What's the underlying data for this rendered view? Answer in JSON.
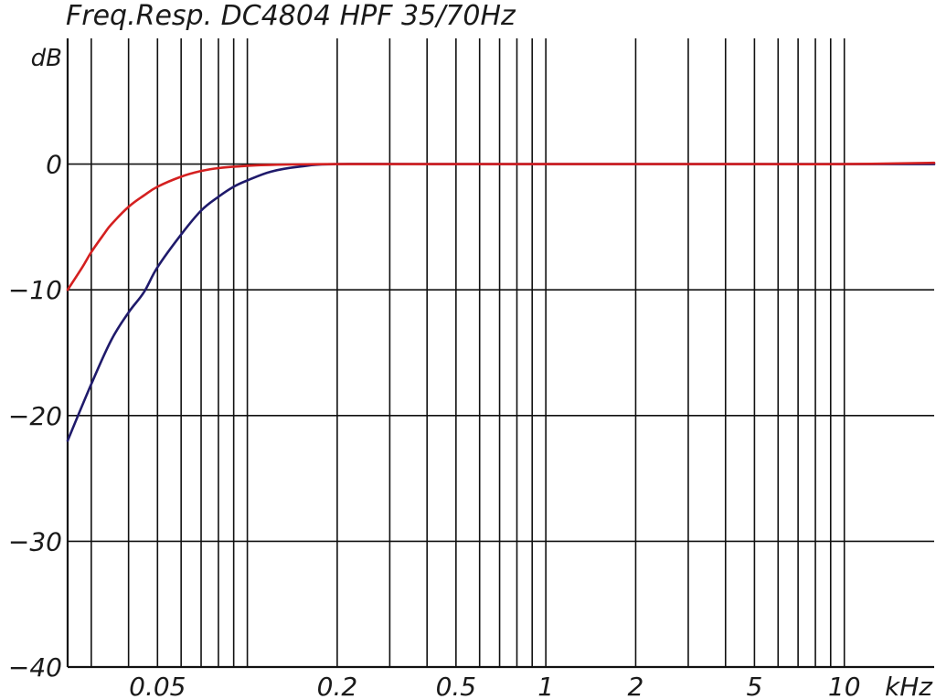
{
  "chart_data": {
    "type": "line",
    "title": "Freq.Resp. DC4804 HPF 35/70Hz",
    "ylabel": "dB",
    "xlabel": "",
    "x_unit_label": "kHz",
    "x_scale": "log",
    "xlim": [
      0.025,
      20
    ],
    "ylim": [
      -40,
      10
    ],
    "grid": true,
    "x_ticks": [
      {
        "value": 0.05,
        "label": "0.05"
      },
      {
        "value": 0.2,
        "label": "0.2"
      },
      {
        "value": 0.5,
        "label": "0.5"
      },
      {
        "value": 1,
        "label": "1"
      },
      {
        "value": 2,
        "label": "2"
      },
      {
        "value": 5,
        "label": "5"
      },
      {
        "value": 10,
        "label": "10"
      }
    ],
    "y_ticks": [
      {
        "value": 0,
        "label": "0"
      },
      {
        "value": -10,
        "label": "−10"
      },
      {
        "value": -20,
        "label": "−20"
      },
      {
        "value": -30,
        "label": "−30"
      },
      {
        "value": -40,
        "label": "−40"
      }
    ],
    "series": [
      {
        "color": "#d42020",
        "x": [
          0.025,
          0.028,
          0.03,
          0.033,
          0.035,
          0.04,
          0.045,
          0.05,
          0.06,
          0.07,
          0.08,
          0.1,
          0.12,
          0.15,
          0.2,
          0.5,
          1,
          2,
          5,
          10,
          20
        ],
        "y": [
          -10.0,
          -8.2,
          -7.0,
          -5.6,
          -4.8,
          -3.4,
          -2.5,
          -1.8,
          -1.0,
          -0.55,
          -0.32,
          -0.13,
          -0.06,
          -0.02,
          0,
          0,
          0,
          0,
          0,
          0,
          0.1
        ]
      },
      {
        "color": "#1f1a6b",
        "x": [
          0.025,
          0.03,
          0.035,
          0.04,
          0.045,
          0.05,
          0.06,
          0.07,
          0.08,
          0.09,
          0.1,
          0.12,
          0.15,
          0.2,
          0.5,
          1,
          2,
          5,
          10,
          20
        ],
        "y": [
          -22.0,
          -17.5,
          -14.0,
          -11.8,
          -10.2,
          -8.2,
          -5.6,
          -3.7,
          -2.6,
          -1.8,
          -1.3,
          -0.6,
          -0.2,
          0,
          0,
          0,
          0,
          0,
          0,
          0
        ]
      }
    ]
  }
}
